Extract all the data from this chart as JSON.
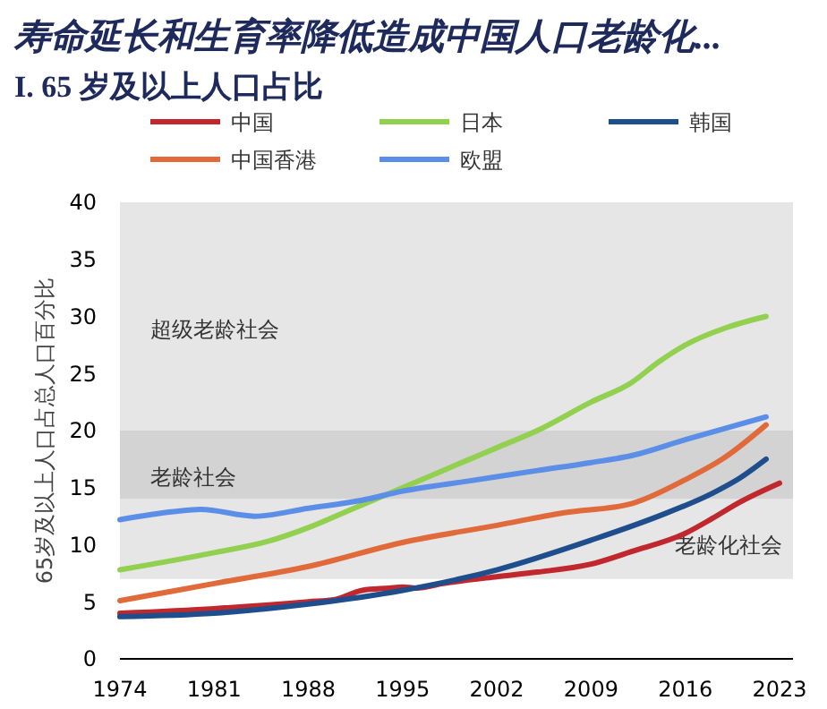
{
  "chart_data": {
    "type": "line",
    "title": "寿命延长和生育率降低造成中国人口老龄化...",
    "subtitle": "I. 65 岁及以上人口占比",
    "ylabel": "65岁及以上人口占总人口百分比",
    "xlim": [
      1974,
      2024
    ],
    "xticks": [
      1974,
      1981,
      1988,
      1995,
      2002,
      2009,
      2016,
      2023
    ],
    "ylim": [
      0,
      40
    ],
    "yticks": [
      0,
      5,
      10,
      15,
      20,
      25,
      30,
      35,
      40
    ],
    "grid": false,
    "legend": "top",
    "line_style": "solid",
    "marker": "none",
    "bands": [
      {
        "axis": "y",
        "from": 7,
        "to": 14,
        "label": "老龄化社会",
        "color": "#e6e6e6"
      },
      {
        "axis": "y",
        "from": 14,
        "to": 20,
        "label": "老龄社会",
        "color": "#d3d3d3"
      },
      {
        "axis": "y",
        "from": 20,
        "to": 40,
        "label": "超级老龄社会",
        "color": "#e6e6e6"
      }
    ],
    "series": [
      {
        "name": "中国",
        "color": "#c0282d",
        "x": [
          1974,
          1981,
          1988,
          1990,
          1992,
          1994,
          1995,
          1996,
          1998,
          2002,
          2005,
          2009,
          2012,
          2016,
          2018,
          2020,
          2023
        ],
        "values": [
          4.0,
          4.4,
          5.0,
          5.2,
          6.0,
          6.2,
          6.3,
          6.2,
          6.6,
          7.2,
          7.6,
          8.3,
          9.4,
          11.0,
          12.3,
          13.7,
          15.4
        ]
      },
      {
        "name": "日本",
        "color": "#92d050",
        "x": [
          1974,
          1981,
          1985,
          1988,
          1991,
          1995,
          2000,
          2002,
          2005,
          2009,
          2012,
          2014,
          2016,
          2019,
          2022
        ],
        "values": [
          7.8,
          9.3,
          10.3,
          11.5,
          13,
          15,
          17.5,
          18.5,
          20,
          22.5,
          24.2,
          26,
          27.5,
          29,
          30
        ]
      },
      {
        "name": "韩国",
        "color": "#1f4e8c",
        "x": [
          1974,
          1981,
          1988,
          1995,
          2002,
          2009,
          2014,
          2018,
          2020,
          2022
        ],
        "values": [
          3.7,
          4.0,
          4.8,
          6.0,
          7.8,
          10.4,
          12.5,
          14.5,
          15.8,
          17.5
        ]
      },
      {
        "name": "中国香港",
        "color": "#e06a3a",
        "x": [
          1974,
          1981,
          1988,
          1995,
          2002,
          2007,
          2012,
          2016,
          2019,
          2022
        ],
        "values": [
          5.1,
          6.6,
          8.1,
          10.2,
          11.7,
          12.8,
          13.6,
          15.7,
          17.7,
          20.5
        ]
      },
      {
        "name": "欧盟",
        "color": "#5b8ee6",
        "x": [
          1974,
          1978,
          1980,
          1984,
          1988,
          1992,
          1995,
          2000,
          2005,
          2009,
          2012,
          2016,
          2022
        ],
        "values": [
          12.2,
          12.9,
          13.1,
          12.5,
          13.2,
          13.9,
          14.7,
          15.6,
          16.5,
          17.2,
          17.8,
          19.2,
          21.2
        ]
      }
    ]
  }
}
